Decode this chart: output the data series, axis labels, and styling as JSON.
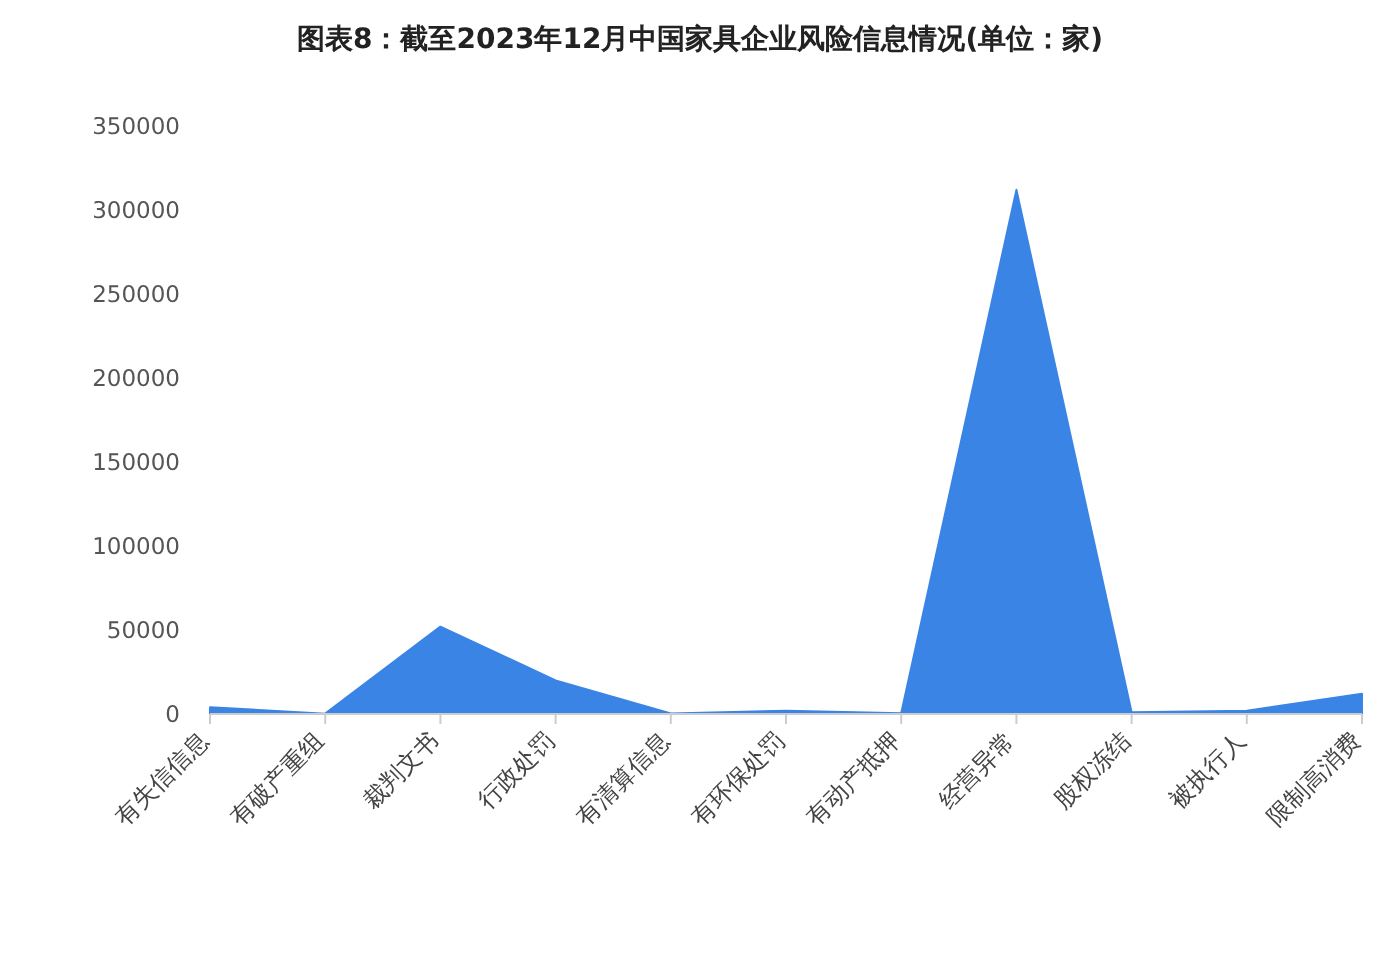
{
  "chart_data": {
    "type": "area",
    "title": "图表8：截至2023年12月中国家具企业风险信息情况(单位：家)",
    "categories": [
      "有失信信息",
      "有破产重组",
      "裁判文书",
      "行政处罚",
      "有清算信息",
      "有环保处罚",
      "有动产抵押",
      "经营异常",
      "股权冻结",
      "被执行人",
      "限制高消费"
    ],
    "values": [
      4000,
      200,
      52000,
      20000,
      300,
      2000,
      500,
      312000,
      1000,
      2000,
      12000
    ],
    "color": "#3a84e6",
    "ylim": [
      0,
      350000
    ],
    "yticks": [
      0,
      50000,
      100000,
      150000,
      200000,
      250000,
      300000,
      350000
    ],
    "grid": false
  }
}
